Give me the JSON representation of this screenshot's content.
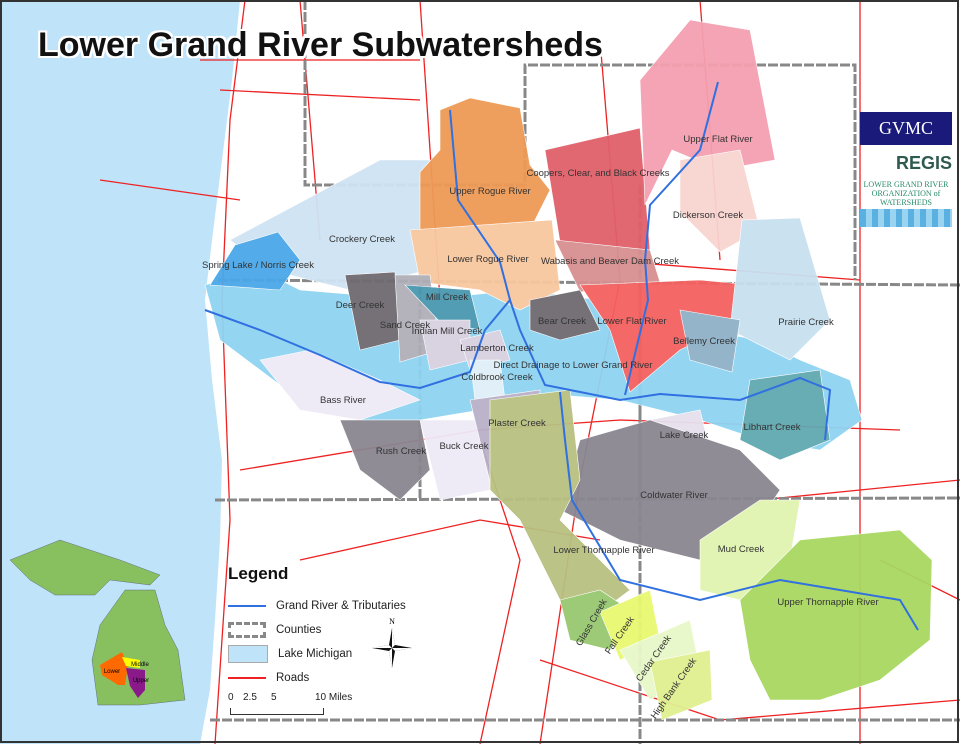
{
  "title": "Lower Grand River Subwatersheds",
  "logos": {
    "gvmc": "GVMC",
    "regis": "REGIS",
    "lgrow": "LOWER GRAND RIVER ORGANIZATION of WATERSHEDS"
  },
  "subwatersheds": [
    {
      "name": "Upper Rogue River",
      "color": "#ee9a55"
    },
    {
      "name": "Lower Rogue River",
      "color": "#f8c8a0"
    },
    {
      "name": "Coopers, Clear, and Black Creeks",
      "color": "#e0606a"
    },
    {
      "name": "Upper Flat River",
      "color": "#f4a0b0"
    },
    {
      "name": "Dickerson Creek",
      "color": "#f8d4d0"
    },
    {
      "name": "Crockery Creek",
      "color": "#cfe3f3"
    },
    {
      "name": "Spring Lake / Norris Creek",
      "color": "#4aa8e8"
    },
    {
      "name": "Wabasis and Beaver Dam Creek",
      "color": "#d89090"
    },
    {
      "name": "Deer Creek",
      "color": "#6e6a70"
    },
    {
      "name": "Sand Creek",
      "color": "#b0aeb8"
    },
    {
      "name": "Mill Creek",
      "color": "#4a98b0"
    },
    {
      "name": "Indian Mill Creek",
      "color": "#d6d0e0"
    },
    {
      "name": "Bear Creek",
      "color": "#6e6a70"
    },
    {
      "name": "Lower Flat River",
      "color": "#f46060"
    },
    {
      "name": "Prairie Creek",
      "color": "#c8e0f0"
    },
    {
      "name": "Bellemy Creek",
      "color": "#8fb0c8"
    },
    {
      "name": "Lamberton Creek",
      "color": "#d6d0e0"
    },
    {
      "name": "Coldbrook Creek",
      "color": "#e0f0f8"
    },
    {
      "name": "Direct Drainage to Lower Grand River",
      "color": "#8fd3f2"
    },
    {
      "name": "Bass River",
      "color": "#eeeaf6"
    },
    {
      "name": "Libhart Creek",
      "color": "#60a8b0"
    },
    {
      "name": "Lake Creek",
      "color": "#e6e0ee"
    },
    {
      "name": "Plaster Creek",
      "color": "#b8b0c8"
    },
    {
      "name": "Rush Creek",
      "color": "#8a8690"
    },
    {
      "name": "Buck Creek",
      "color": "#eeeaf6"
    },
    {
      "name": "Coldwater River",
      "color": "#8a8690"
    },
    {
      "name": "Lower Thornapple River",
      "color": "#b8c080"
    },
    {
      "name": "Mud Creek",
      "color": "#e0f4b0"
    },
    {
      "name": "Upper Thornapple River",
      "color": "#a8d860"
    },
    {
      "name": "Glass Creek",
      "color": "#98c870"
    },
    {
      "name": "Fall Creek",
      "color": "#e8f870"
    },
    {
      "name": "Cedar Creek",
      "color": "#e8f8c8"
    },
    {
      "name": "High Bank Creek",
      "color": "#e0f090"
    }
  ],
  "legend": {
    "title": "Legend",
    "items": [
      {
        "label": "Grand River & Tributaries",
        "color": "#3070e0"
      },
      {
        "label": "Counties",
        "color": "#888888"
      },
      {
        "label": "Lake Michigan",
        "color": "#bfe3f8"
      },
      {
        "label": "Roads",
        "color": "#ee2222"
      }
    ],
    "scale_labels": [
      "0",
      "2.5",
      "5",
      "10 Miles"
    ]
  },
  "north_arrow": "N",
  "inset": {
    "labels": [
      "Lower",
      "Middle",
      "Upper"
    ],
    "colors": {
      "state": "#88c060",
      "lower": "#ff6a00",
      "middle": "#ffff00",
      "upper": "#8a1a8a"
    }
  },
  "colors": {
    "lake": "#bfe3f8",
    "river": "#3070e0",
    "road": "#ee2222",
    "county": "#888888"
  }
}
